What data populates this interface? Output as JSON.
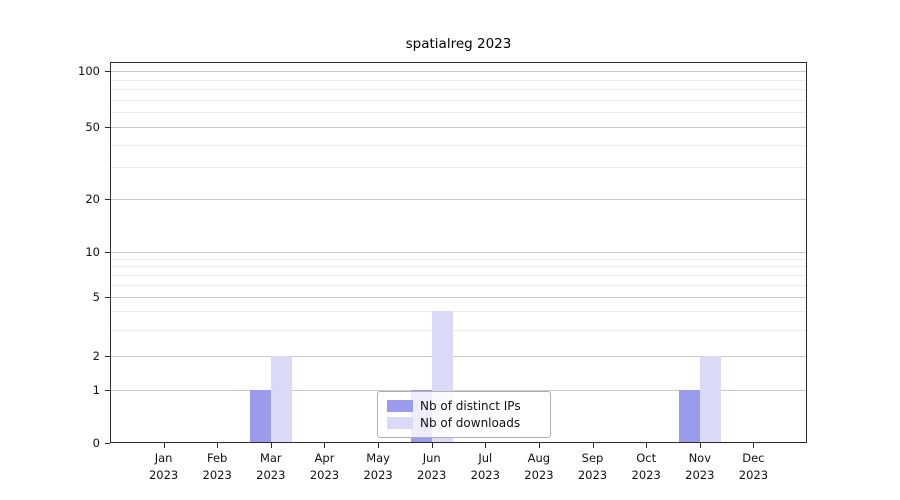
{
  "title": "spatialreg 2023",
  "colors": {
    "bar_distinct_ips": "#9b9bee",
    "bar_downloads": "#dadaf8",
    "grid_major": "#c9c9c9",
    "grid_minor": "#eaeaea",
    "axis": "#2a2a2a",
    "legend_border": "#b0b0b0"
  },
  "legend": {
    "items": [
      {
        "label": "Nb of distinct IPs",
        "color": "#9b9bee"
      },
      {
        "label": "Nb of downloads",
        "color": "#dadaf8"
      }
    ]
  },
  "chart_data": {
    "type": "bar",
    "title": "spatialreg 2023",
    "categories": [
      "Jan 2023",
      "Feb 2023",
      "Mar 2023",
      "Apr 2023",
      "May 2023",
      "Jun 2023",
      "Jul 2023",
      "Aug 2023",
      "Sep 2023",
      "Oct 2023",
      "Nov 2023",
      "Dec 2023"
    ],
    "months": [
      "Jan",
      "Feb",
      "Mar",
      "Apr",
      "May",
      "Jun",
      "Jul",
      "Aug",
      "Sep",
      "Oct",
      "Nov",
      "Dec"
    ],
    "year_label": "2023",
    "series": [
      {
        "name": "Nb of distinct IPs",
        "color": "#9b9bee",
        "values": [
          0,
          0,
          1,
          0,
          0,
          1,
          0,
          0,
          0,
          0,
          1,
          0
        ]
      },
      {
        "name": "Nb of downloads",
        "color": "#dadaf8",
        "values": [
          0,
          0,
          2,
          0,
          0,
          4,
          0,
          0,
          0,
          0,
          2,
          0
        ]
      }
    ],
    "y_ticks": [
      0,
      1,
      2,
      5,
      10,
      20,
      50,
      100
    ],
    "y_minor_gridlines": [
      3,
      4,
      6,
      7,
      8,
      9,
      30,
      40,
      60,
      70,
      80,
      90
    ],
    "y_scale": "log-like (ticks 0,1,2,5,10,20,50,100)",
    "ylim": [
      0,
      110
    ],
    "grid": true,
    "legend_position": "lower center inside plot"
  }
}
